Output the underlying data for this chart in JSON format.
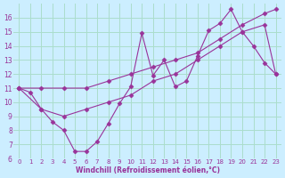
{
  "xlabel": "Windchill (Refroidissement éolien,°C)",
  "bg_color": "#cceeff",
  "grid_color": "#aaddcc",
  "line_color": "#993399",
  "xlim": [
    -0.5,
    23.5
  ],
  "ylim": [
    6,
    17
  ],
  "xticks": [
    0,
    1,
    2,
    3,
    4,
    5,
    6,
    7,
    8,
    9,
    10,
    11,
    12,
    13,
    14,
    15,
    16,
    17,
    18,
    19,
    20,
    21,
    22,
    23
  ],
  "yticks": [
    6,
    7,
    8,
    9,
    10,
    11,
    12,
    13,
    14,
    15,
    16
  ],
  "line1_x": [
    0,
    1,
    2,
    3,
    4,
    5,
    6,
    7,
    8,
    9,
    10,
    11,
    12,
    13,
    14,
    15,
    16,
    17,
    18,
    19,
    20,
    21,
    22,
    23
  ],
  "line1_y": [
    11.0,
    10.7,
    9.5,
    8.6,
    8.0,
    6.5,
    6.5,
    7.2,
    8.5,
    9.9,
    11.1,
    14.9,
    11.9,
    13.0,
    11.1,
    11.5,
    13.3,
    15.1,
    15.6,
    16.6,
    15.0,
    14.0,
    12.8,
    12.0
  ],
  "line2_x": [
    0,
    2,
    4,
    6,
    8,
    10,
    12,
    14,
    16,
    18,
    20,
    22,
    23
  ],
  "line2_y": [
    11.0,
    11.0,
    11.0,
    11.0,
    11.5,
    12.0,
    12.5,
    13.0,
    13.5,
    14.5,
    15.5,
    16.3,
    16.6
  ],
  "line3_x": [
    0,
    2,
    4,
    6,
    8,
    10,
    12,
    14,
    16,
    18,
    20,
    22,
    23
  ],
  "line3_y": [
    11.0,
    9.5,
    9.0,
    9.5,
    10.0,
    10.5,
    11.5,
    12.0,
    13.0,
    14.0,
    15.0,
    15.5,
    12.0
  ]
}
